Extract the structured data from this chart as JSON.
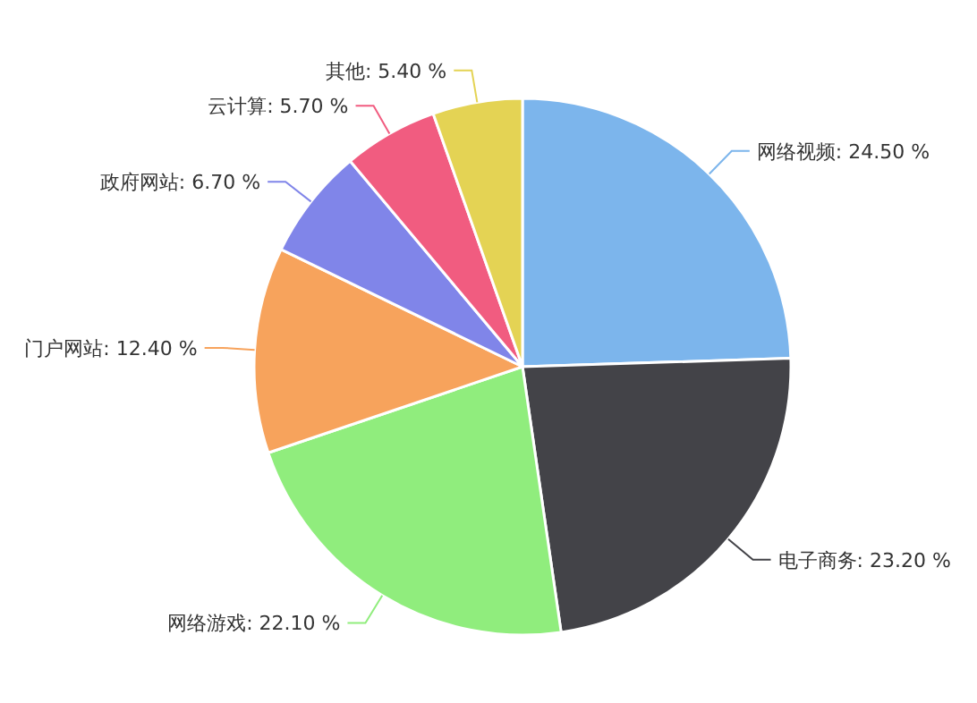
{
  "chart_data": {
    "type": "pie",
    "categories": [
      "网络视频",
      "电子商务",
      "网络游戏",
      "门户网站",
      "政府网站",
      "云计算",
      "其他"
    ],
    "values": [
      24.5,
      23.2,
      22.1,
      12.4,
      6.7,
      5.7,
      5.4
    ],
    "value_labels": [
      "24.50 %",
      "23.20 %",
      "22.10 %",
      "12.40 %",
      "6.70 %",
      "5.70 %",
      "5.40 %"
    ],
    "colors": [
      "#7cb5ec",
      "#434348",
      "#90ed7d",
      "#f7a35c",
      "#8085e9",
      "#f15c80",
      "#e4d354"
    ]
  }
}
